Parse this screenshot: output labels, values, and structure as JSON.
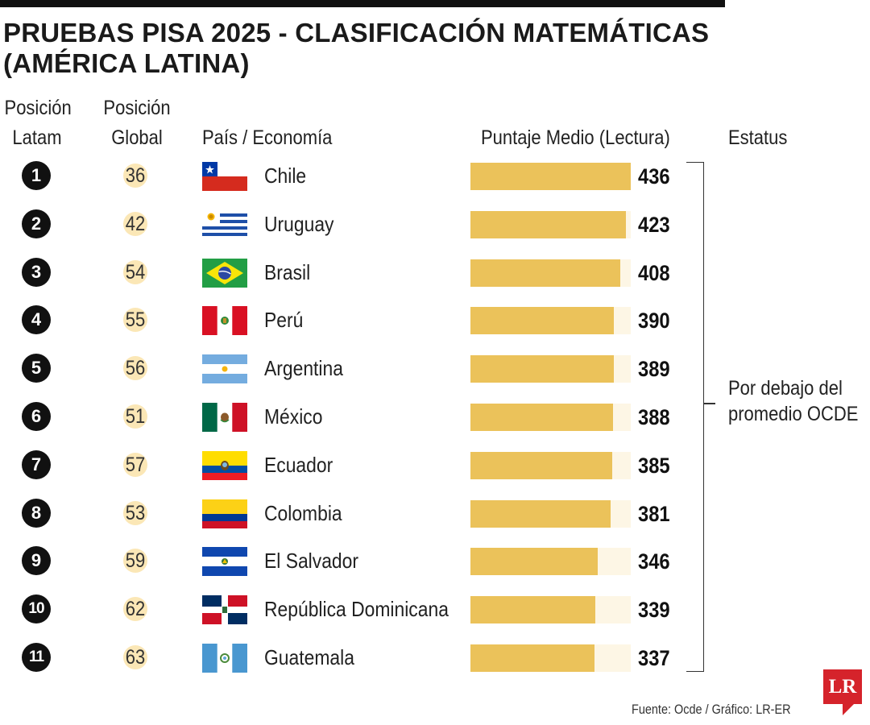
{
  "title": "PRUEBAS PISA 2025 - CLASIFICACIÓN MATEMÁTICAS (AMÉRICA LATINA)",
  "headers": {
    "latam_line1": "Posición",
    "latam_line2": "Latam",
    "global_line1": "Posición",
    "global_line2": "Global",
    "country": "País / Economía",
    "score": "Puntaje Medio (Lectura)",
    "status": "Estatus"
  },
  "status_text_line1": "Por debajo del",
  "status_text_line2": "promedio OCDE",
  "source": "Fuente: Ocde / Gráfico: LR-ER",
  "logo": "LR",
  "colors": {
    "bar": "#ebc25a",
    "bar_background": "#fdf6e5",
    "global_badge": "#fbe7b6",
    "logo": "#d5232b"
  },
  "chart_data": {
    "type": "bar",
    "orientation": "horizontal",
    "title": "PRUEBAS PISA 2025 - CLASIFICACIÓN MATEMÁTICAS (AMÉRICA LATINA)",
    "ylabel": "Puntaje Medio (Lectura)",
    "categories": [
      "Chile",
      "Uruguay",
      "Brasil",
      "Perú",
      "Argentina",
      "México",
      "Ecuador",
      "Colombia",
      "El Salvador",
      "República Dominicana",
      "Guatemala"
    ],
    "values": [
      436,
      423,
      408,
      390,
      389,
      388,
      385,
      381,
      346,
      339,
      337
    ],
    "latam_rank": [
      1,
      2,
      3,
      4,
      5,
      6,
      7,
      8,
      9,
      10,
      11
    ],
    "global_rank": [
      36,
      42,
      54,
      55,
      56,
      51,
      57,
      53,
      59,
      62,
      63
    ],
    "flag_icons": [
      "chile-flag-icon",
      "uruguay-flag-icon",
      "brazil-flag-icon",
      "peru-flag-icon",
      "argentina-flag-icon",
      "mexico-flag-icon",
      "ecuador-flag-icon",
      "colombia-flag-icon",
      "el-salvador-flag-icon",
      "dominican-republic-flag-icon",
      "guatemala-flag-icon"
    ]
  }
}
